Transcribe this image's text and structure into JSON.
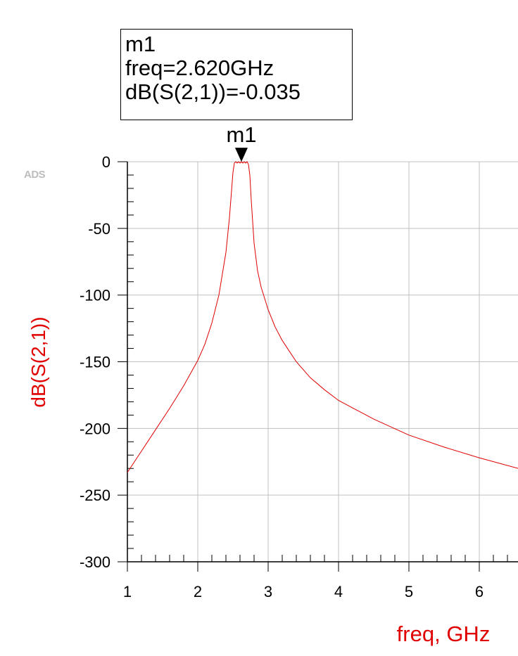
{
  "ads_tag": "ADS",
  "marker": {
    "name": "m1",
    "freq_text": "freq=2.620GHz",
    "value_text": "dB(S(2,1))=-0.035",
    "x": 2.62,
    "y": -0.035
  },
  "colors": {
    "trace": "#e00000",
    "axis_label": "#e00000",
    "grid": "#c0c0c0",
    "axis": "#000000"
  },
  "chart_data": {
    "type": "line",
    "xlabel": "freq, GHz",
    "ylabel": "dB(S(2,1))",
    "xlim": [
      1,
      6.55
    ],
    "ylim": [
      -300,
      0
    ],
    "xticks": [
      1,
      2,
      3,
      4,
      5,
      6
    ],
    "yticks": [
      0,
      -50,
      -100,
      -150,
      -200,
      -250,
      -300
    ],
    "grid": true,
    "series": [
      {
        "name": "dB(S(2,1))",
        "x": [
          1.0,
          1.2,
          1.4,
          1.6,
          1.8,
          2.0,
          2.1,
          2.2,
          2.3,
          2.4,
          2.45,
          2.5,
          2.52,
          2.54,
          2.56,
          2.58,
          2.6,
          2.62,
          2.64,
          2.66,
          2.68,
          2.7,
          2.72,
          2.74,
          2.76,
          2.8,
          2.85,
          2.9,
          3.0,
          3.1,
          3.2,
          3.4,
          3.6,
          3.8,
          4.0,
          4.5,
          5.0,
          5.5,
          6.0,
          6.55
        ],
        "y": [
          -233,
          -217,
          -201,
          -185,
          -168,
          -149,
          -137,
          -121,
          -100,
          -68,
          -42,
          -8,
          -1,
          0,
          -1,
          0,
          -1,
          -0.035,
          -1,
          0,
          -1,
          0,
          -2,
          -10,
          -29,
          -61,
          -82,
          -94,
          -111,
          -124,
          -134,
          -150,
          -162,
          -171,
          -179,
          -193,
          -205,
          -214,
          -222,
          -230
        ]
      }
    ]
  }
}
